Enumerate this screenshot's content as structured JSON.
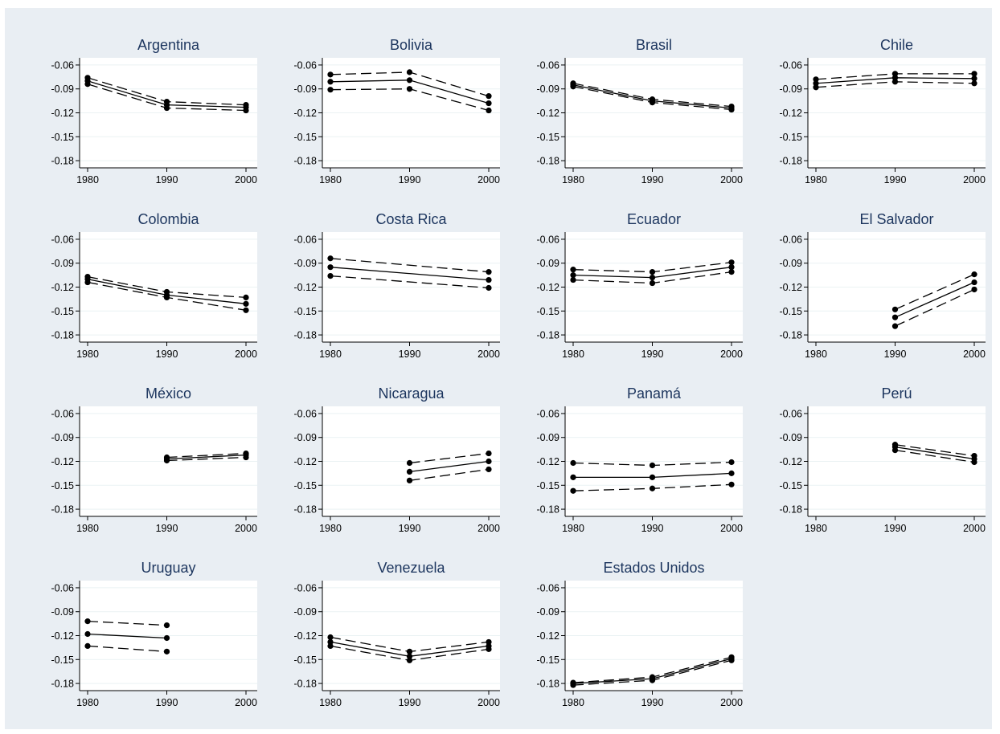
{
  "chart_data": {
    "type": "line",
    "colors": {
      "background": "#e9eef3",
      "plot_area": "#ffffff",
      "line": "#000000",
      "gridline": "#eaf2f3",
      "title": "#1c355e"
    },
    "line_styles": [
      "dash",
      "solid",
      "dash"
    ],
    "grid": true,
    "x_ticks": [
      1980,
      1990,
      2000
    ],
    "x_tick_labels": [
      "1980",
      "1990",
      "2000"
    ],
    "xlim": [
      1980,
      2000
    ],
    "y_ticks": [
      -0.06,
      -0.09,
      -0.12,
      -0.15,
      -0.18
    ],
    "y_tick_labels": [
      "-0.06",
      "-0.09",
      "-0.12",
      "-0.15",
      "-0.18"
    ],
    "ylim": [
      -0.189,
      -0.051
    ],
    "panels": [
      {
        "title": "Argentina",
        "x": [
          1980,
          1990,
          2000
        ],
        "upper": [
          -0.076,
          -0.106,
          -0.11
        ],
        "estimate": [
          -0.08,
          -0.11,
          -0.113
        ],
        "lower": [
          -0.084,
          -0.114,
          -0.117
        ]
      },
      {
        "title": "Bolivia",
        "x": [
          1980,
          1990,
          2000
        ],
        "upper": [
          -0.072,
          -0.069,
          -0.099
        ],
        "estimate": [
          -0.081,
          -0.079,
          -0.108
        ],
        "lower": [
          -0.091,
          -0.09,
          -0.117
        ]
      },
      {
        "title": "Brasil",
        "x": [
          1980,
          1990,
          2000
        ],
        "upper": [
          -0.083,
          -0.103,
          -0.112
        ],
        "estimate": [
          -0.085,
          -0.105,
          -0.114
        ],
        "lower": [
          -0.087,
          -0.107,
          -0.116
        ]
      },
      {
        "title": "Chile",
        "x": [
          1980,
          1990,
          2000
        ],
        "upper": [
          -0.078,
          -0.071,
          -0.071
        ],
        "estimate": [
          -0.083,
          -0.076,
          -0.077
        ],
        "lower": [
          -0.088,
          -0.081,
          -0.083
        ]
      },
      {
        "title": "Colombia",
        "x": [
          1980,
          1990,
          2000
        ],
        "upper": [
          -0.107,
          -0.126,
          -0.133
        ],
        "estimate": [
          -0.11,
          -0.13,
          -0.141
        ],
        "lower": [
          -0.114,
          -0.133,
          -0.149
        ]
      },
      {
        "title": "Costa Rica",
        "x": [
          1980,
          2000
        ],
        "upper": [
          -0.084,
          -0.101
        ],
        "estimate": [
          -0.095,
          -0.111
        ],
        "lower": [
          -0.106,
          -0.121
        ]
      },
      {
        "title": "Ecuador",
        "x": [
          1980,
          1990,
          2000
        ],
        "upper": [
          -0.098,
          -0.101,
          -0.089
        ],
        "estimate": [
          -0.105,
          -0.108,
          -0.095
        ],
        "lower": [
          -0.111,
          -0.115,
          -0.101
        ]
      },
      {
        "title": "El Salvador",
        "x": [
          1990,
          2000
        ],
        "upper": [
          -0.148,
          -0.104
        ],
        "estimate": [
          -0.158,
          -0.114
        ],
        "lower": [
          -0.169,
          -0.123
        ]
      },
      {
        "title": "México",
        "x": [
          1990,
          2000
        ],
        "upper": [
          -0.115,
          -0.11
        ],
        "estimate": [
          -0.117,
          -0.112
        ],
        "lower": [
          -0.119,
          -0.115
        ]
      },
      {
        "title": "Nicaragua",
        "x": [
          1990,
          2000
        ],
        "upper": [
          -0.122,
          -0.11
        ],
        "estimate": [
          -0.133,
          -0.12
        ],
        "lower": [
          -0.144,
          -0.13
        ]
      },
      {
        "title": "Panamá",
        "x": [
          1980,
          1990,
          2000
        ],
        "upper": [
          -0.122,
          -0.125,
          -0.121
        ],
        "estimate": [
          -0.14,
          -0.14,
          -0.135
        ],
        "lower": [
          -0.157,
          -0.154,
          -0.149
        ]
      },
      {
        "title": "Perú",
        "x": [
          1990,
          2000
        ],
        "upper": [
          -0.099,
          -0.113
        ],
        "estimate": [
          -0.102,
          -0.117
        ],
        "lower": [
          -0.106,
          -0.121
        ]
      },
      {
        "title": "Uruguay",
        "x": [
          1980,
          1990
        ],
        "upper": [
          -0.102,
          -0.107
        ],
        "estimate": [
          -0.118,
          -0.123
        ],
        "lower": [
          -0.133,
          -0.14
        ]
      },
      {
        "title": "Venezuela",
        "x": [
          1980,
          1990,
          2000
        ],
        "upper": [
          -0.122,
          -0.14,
          -0.128
        ],
        "estimate": [
          -0.128,
          -0.146,
          -0.133
        ],
        "lower": [
          -0.133,
          -0.151,
          -0.137
        ]
      },
      {
        "title": "Estados Unidos",
        "x": [
          1980,
          1990,
          2000
        ],
        "upper": [
          -0.179,
          -0.172,
          -0.147
        ],
        "estimate": [
          -0.18,
          -0.174,
          -0.149
        ],
        "lower": [
          -0.182,
          -0.176,
          -0.151
        ]
      }
    ]
  }
}
